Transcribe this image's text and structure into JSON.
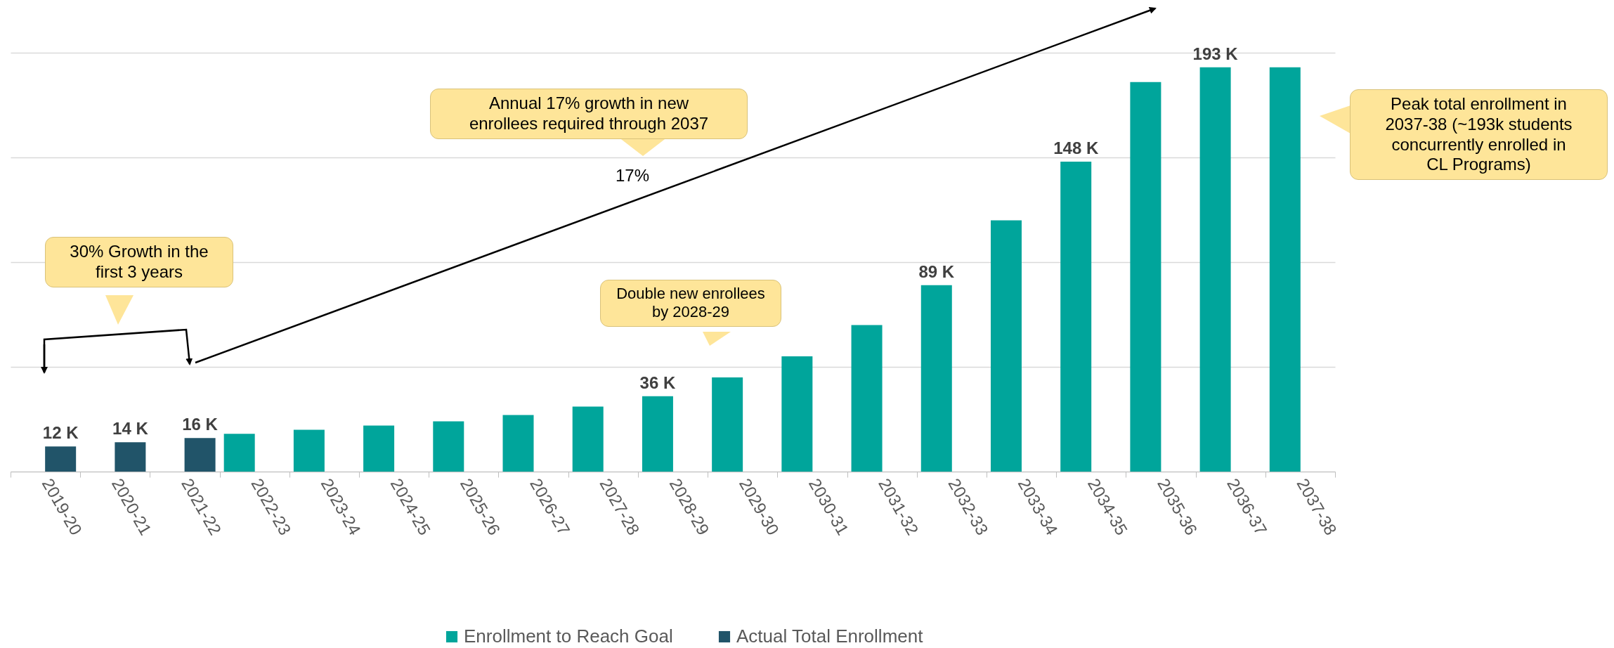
{
  "chart_data": {
    "type": "bar",
    "categories": [
      "2019-20",
      "2020-21",
      "2021-22",
      "2022-23",
      "2023-24",
      "2024-25",
      "2025-26",
      "2026-27",
      "2027-28",
      "2028-29",
      "2029-30",
      "2030-31",
      "2031-32",
      "2032-33",
      "2033-34",
      "2034-35",
      "2035-36",
      "2036-37",
      "2037-38"
    ],
    "series": [
      {
        "name": "Enrollment to Reach Goal",
        "color": "#00a59b",
        "values": [
          null,
          null,
          null,
          18,
          20,
          22,
          24,
          27,
          31,
          36,
          45,
          55,
          70,
          89,
          120,
          148,
          186,
          193,
          193
        ],
        "value_labels": [
          null,
          null,
          null,
          null,
          null,
          null,
          null,
          null,
          null,
          "36 K",
          null,
          null,
          null,
          "89 K",
          null,
          "148 K",
          null,
          "193 K",
          null
        ]
      },
      {
        "name": "Actual Total Enrollment",
        "color": "#215469",
        "values": [
          12,
          14,
          16,
          null,
          null,
          null,
          null,
          null,
          null,
          null,
          null,
          null,
          null,
          null,
          null,
          null,
          null,
          null,
          null
        ],
        "value_labels": [
          "12 K",
          "14 K",
          "16 K",
          null,
          null,
          null,
          null,
          null,
          null,
          null,
          null,
          null,
          null,
          null,
          null,
          null,
          null,
          null,
          null
        ]
      }
    ],
    "ylim": [
      0,
      200
    ],
    "yticks": [
      {
        "value": 0,
        "label": null
      },
      {
        "value": 50,
        "label": null
      },
      {
        "value": 100,
        "label": null
      },
      {
        "value": 150,
        "label": null
      },
      {
        "value": 200,
        "label": null
      }
    ],
    "grid": "y",
    "legend": "bottom",
    "annotations": [
      "30% Growth in the first 3 years",
      "Annual 17% growth in new enrollees required through 2037",
      "17%",
      "Double new enrollees by 2028-29",
      "Peak total enrollment in 2037-38 (~193k students concurrently enrolled in CL Programs)"
    ]
  }
}
